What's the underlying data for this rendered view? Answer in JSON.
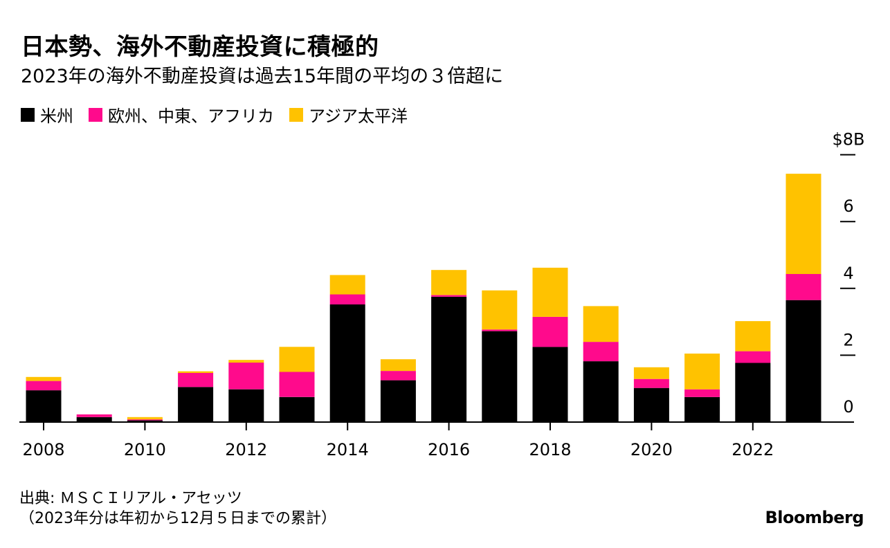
{
  "title": "日本勢、海外不動産投資に積極的",
  "subtitle": "2023年の海外不動産投資は過去15年間の平均の３倍超に",
  "colors": {
    "americas": "#000000",
    "emea": "#ff0a8c",
    "apac": "#ffc200",
    "axis": "#000000"
  },
  "source_line1": "出典: ＭＳＣＩリアル・アセッツ",
  "source_line2": "（2023年分は年初から12月５日までの累計）",
  "brand": "Bloomberg",
  "chart_data": {
    "type": "bar",
    "stacked": true,
    "title": "日本勢、海外不動産投資に積極的",
    "subtitle": "2023年の海外不動産投資は過去15年間の平均の３倍超に",
    "xlabel": "",
    "ylabel": "",
    "ylim": [
      0,
      8
    ],
    "y_ticks": [
      0,
      2,
      4,
      6,
      8
    ],
    "y_tick_labels": [
      "0",
      "2",
      "4",
      "6",
      "$8B"
    ],
    "x_tick_labels": [
      "2008",
      "2010",
      "2012",
      "2014",
      "2016",
      "2018",
      "2020",
      "2022"
    ],
    "legend_position": "top-left",
    "categories": [
      "2008",
      "2009",
      "2010",
      "2011",
      "2012",
      "2013",
      "2014",
      "2015",
      "2016",
      "2017",
      "2018",
      "2019",
      "2020",
      "2021",
      "2022",
      "2023"
    ],
    "series": [
      {
        "name": "米州",
        "key": "americas",
        "values": [
          0.95,
          0.15,
          0.05,
          1.05,
          0.98,
          0.75,
          3.52,
          1.25,
          3.75,
          2.72,
          2.25,
          1.82,
          1.02,
          0.75,
          1.77,
          3.65
        ]
      },
      {
        "name": "欧州、中東、アフリカ",
        "key": "emea",
        "values": [
          0.28,
          0.08,
          0.03,
          0.42,
          0.8,
          0.75,
          0.3,
          0.28,
          0.05,
          0.05,
          0.9,
          0.58,
          0.27,
          0.23,
          0.35,
          0.78
        ]
      },
      {
        "name": "アジア太平洋",
        "key": "apac",
        "values": [
          0.12,
          0.0,
          0.07,
          0.05,
          0.08,
          0.75,
          0.58,
          0.35,
          0.75,
          1.17,
          1.47,
          1.07,
          0.35,
          1.07,
          0.9,
          3.0
        ]
      }
    ]
  }
}
